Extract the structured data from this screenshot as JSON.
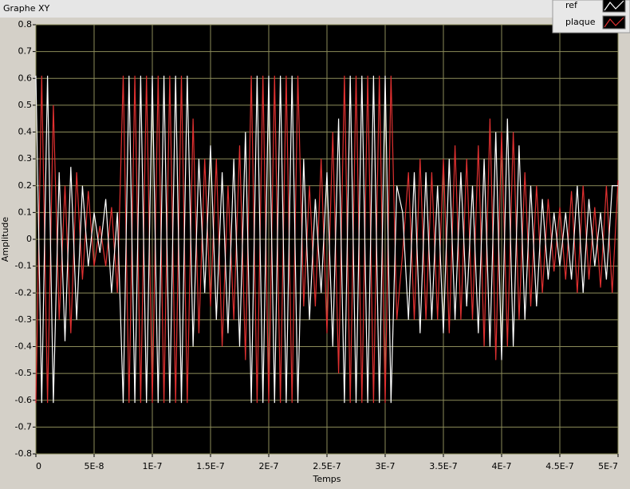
{
  "chart_data": {
    "type": "line",
    "title": "Graphe XY",
    "xlabel": "Temps",
    "ylabel": "Amplitude",
    "xlim": [
      0,
      5e-07
    ],
    "ylim": [
      -0.8,
      0.8
    ],
    "xticks": [
      0,
      {
        "value": 5e-08,
        "label": "5E-8"
      },
      {
        "value": 1e-07,
        "label": "1E-7"
      },
      {
        "value": 1.5e-07,
        "label": "1.5E-7"
      },
      {
        "value": 2e-07,
        "label": "2E-7"
      },
      {
        "value": 2.5e-07,
        "label": "2.5E-7"
      },
      {
        "value": 3e-07,
        "label": "3E-7"
      },
      {
        "value": 3.5e-07,
        "label": "3.5E-7"
      },
      {
        "value": 4e-07,
        "label": "4E-7"
      },
      {
        "value": 4.5e-07,
        "label": "4.5E-7"
      },
      {
        "value": 5e-07,
        "label": "5E-7"
      }
    ],
    "yticks": [
      -0.8,
      -0.7,
      -0.6,
      -0.5,
      -0.4,
      -0.3,
      -0.2,
      -0.1,
      0,
      0.1,
      0.2,
      0.3,
      0.4,
      0.5,
      0.6,
      0.7,
      0.8
    ],
    "grid": true,
    "legend": "top-right",
    "x": [
      0,
      5e-09,
      1e-08,
      1.5e-08,
      2e-08,
      2.5e-08,
      3e-08,
      3.5e-08,
      4e-08,
      4.5e-08,
      5e-08,
      5.5e-08,
      6e-08,
      6.5e-08,
      7e-08,
      7.5e-08,
      8e-08,
      8.5e-08,
      9e-08,
      9.5e-08,
      1e-07,
      1.05e-07,
      1.1e-07,
      1.15e-07,
      1.2e-07,
      1.25e-07,
      1.3e-07,
      1.35e-07,
      1.4e-07,
      1.45e-07,
      1.5e-07,
      1.55e-07,
      1.6e-07,
      1.65e-07,
      1.7e-07,
      1.75e-07,
      1.8e-07,
      1.85e-07,
      1.9e-07,
      1.95e-07,
      2e-07,
      2.05e-07,
      2.1e-07,
      2.15e-07,
      2.2e-07,
      2.25e-07,
      2.3e-07,
      2.35e-07,
      2.4e-07,
      2.45e-07,
      2.5e-07,
      2.55e-07,
      2.6e-07,
      2.65e-07,
      2.7e-07,
      2.75e-07,
      2.8e-07,
      2.85e-07,
      2.9e-07,
      2.95e-07,
      3e-07,
      3.05e-07,
      3.1e-07,
      3.15e-07,
      3.2e-07,
      3.25e-07,
      3.3e-07,
      3.35e-07,
      3.4e-07,
      3.45e-07,
      3.5e-07,
      3.55e-07,
      3.6e-07,
      3.65e-07,
      3.7e-07,
      3.75e-07,
      3.8e-07,
      3.85e-07,
      3.9e-07,
      3.95e-07,
      4e-07,
      4.05e-07,
      4.1e-07,
      4.15e-07,
      4.2e-07,
      4.25e-07,
      4.3e-07,
      4.35e-07,
      4.4e-07,
      4.45e-07,
      4.5e-07,
      4.55e-07,
      4.6e-07,
      4.65e-07,
      4.7e-07,
      4.75e-07,
      4.8e-07,
      4.85e-07,
      4.9e-07,
      4.95e-07,
      5e-07
    ],
    "series": [
      {
        "name": "ref",
        "color": "#ffffff",
        "values": [
          0.61,
          -0.61,
          0.61,
          -0.61,
          0.25,
          -0.38,
          0.27,
          -0.3,
          0.2,
          -0.1,
          0.1,
          -0.05,
          0.15,
          -0.2,
          0.1,
          -0.61,
          0.61,
          -0.61,
          0.61,
          -0.61,
          0.61,
          -0.61,
          0.61,
          -0.61,
          0.61,
          -0.61,
          0.61,
          -0.4,
          0.3,
          -0.2,
          0.35,
          -0.3,
          0.25,
          -0.35,
          0.3,
          -0.4,
          0.4,
          -0.61,
          0.61,
          -0.61,
          0.61,
          -0.61,
          0.61,
          -0.61,
          0.61,
          -0.61,
          0.3,
          -0.3,
          0.15,
          -0.2,
          0.25,
          -0.4,
          0.45,
          -0.61,
          0.61,
          -0.61,
          0.61,
          -0.61,
          0.61,
          -0.61,
          0.61,
          -0.61,
          0.2,
          0.1,
          -0.3,
          0.25,
          -0.35,
          0.25,
          -0.3,
          0.2,
          -0.35,
          0.3,
          -0.3,
          0.25,
          -0.25,
          0.2,
          -0.35,
          0.3,
          -0.4,
          0.4,
          -0.45,
          0.45,
          -0.4,
          0.35,
          -0.3,
          0.2,
          -0.25,
          0.15,
          -0.15,
          0.1,
          -0.1,
          0.1,
          -0.15,
          0.2,
          -0.2,
          0.15,
          -0.1,
          0.1,
          -0.15,
          0.2,
          0.2
        ]
      },
      {
        "name": "plaque",
        "color": "#e03030",
        "values": [
          -0.61,
          0.61,
          -0.61,
          0.5,
          -0.3,
          0.2,
          -0.35,
          0.25,
          -0.15,
          0.18,
          -0.1,
          0.05,
          -0.1,
          0.12,
          -0.2,
          0.61,
          -0.61,
          0.61,
          -0.61,
          0.61,
          -0.61,
          0.61,
          -0.61,
          0.61,
          -0.61,
          0.61,
          -0.61,
          0.45,
          -0.35,
          0.3,
          -0.25,
          0.3,
          -0.4,
          0.2,
          -0.3,
          0.35,
          -0.45,
          0.61,
          -0.61,
          0.61,
          -0.61,
          0.61,
          -0.61,
          0.61,
          -0.61,
          0.61,
          -0.25,
          0.2,
          -0.25,
          0.3,
          -0.35,
          0.4,
          -0.5,
          0.61,
          -0.61,
          0.61,
          -0.61,
          0.61,
          -0.61,
          0.61,
          -0.61,
          0.61,
          -0.3,
          -0.05,
          0.25,
          -0.3,
          0.3,
          -0.3,
          0.25,
          -0.3,
          0.3,
          -0.35,
          0.35,
          -0.3,
          0.3,
          -0.3,
          0.35,
          -0.4,
          0.45,
          -0.45,
          0.4,
          -0.4,
          0.4,
          -0.3,
          0.25,
          -0.25,
          0.2,
          -0.2,
          0.15,
          -0.12,
          0.12,
          -0.15,
          0.18,
          -0.2,
          0.2,
          -0.15,
          0.12,
          -0.18,
          0.2,
          -0.2,
          0.22
        ]
      }
    ]
  }
}
